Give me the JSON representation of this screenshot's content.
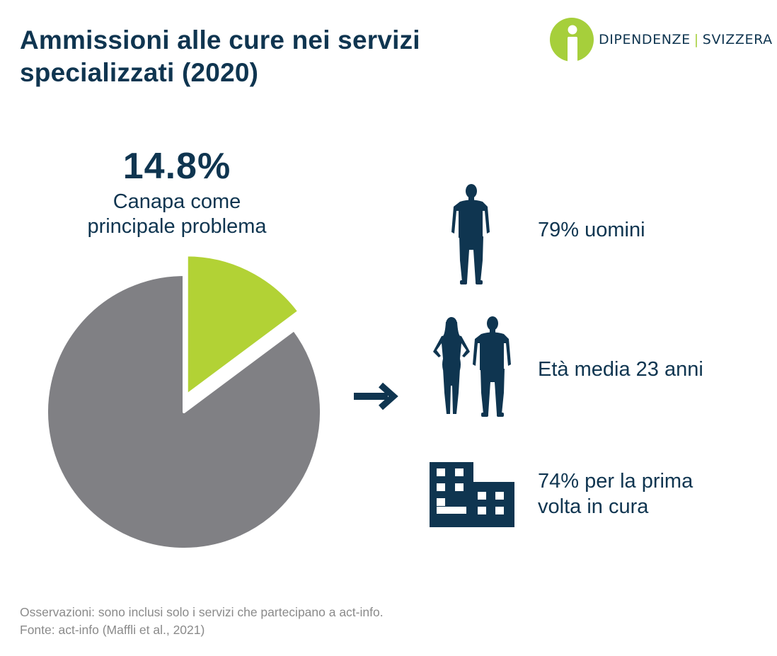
{
  "title": "Ammissioni alle cure nei servizi specializzati (2020)",
  "logo": {
    "left": "DIPENDENZE",
    "separator": "|",
    "right": "SVIZZERA",
    "color_green": "#a6cf3b",
    "color_navy": "#0f3550"
  },
  "highlight": {
    "value_label": "14.8%",
    "caption_line1": "Canapa come",
    "caption_line2": "principale problema"
  },
  "chart_data": {
    "type": "pie",
    "slices": [
      {
        "value": 14.8,
        "color": "#b2d235"
      },
      {
        "value": 85.2,
        "color": "#808084"
      }
    ]
  },
  "stats": [
    {
      "icon": "man-silhouette-icon",
      "text": "79% uomini"
    },
    {
      "icon": "woman-and-man-silhouette-icon",
      "text": "Età media 23 anni"
    },
    {
      "icon": "building-icon",
      "line1": "74% per la prima",
      "line2": "volta in cura"
    }
  ],
  "footnote": {
    "line1": "Osservazioni: sono inclusi solo i servizi che partecipano a act-info.",
    "line2": "Fonte: act-info (Maffli et al., 2021)"
  }
}
